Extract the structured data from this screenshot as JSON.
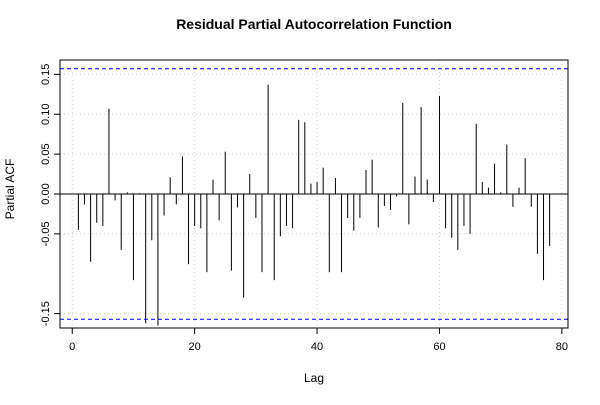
{
  "chart_data": {
    "type": "bar",
    "title": "Residual Partial Autocorrelation Function",
    "xlabel": "Lag",
    "ylabel": "Partial ACF",
    "xlim": [
      -2,
      81
    ],
    "ylim": [
      -0.168,
      0.168
    ],
    "x_ticks": [
      0,
      20,
      40,
      60,
      80
    ],
    "x_tick_labels": [
      "0",
      "20",
      "40",
      "60",
      "80"
    ],
    "y_ticks": [
      -0.15,
      -0.05,
      0.0,
      0.05,
      0.1,
      0.15
    ],
    "y_tick_labels": [
      "-0.15",
      "-0.05",
      "0.00",
      "0.05",
      "0.10",
      "0.15"
    ],
    "grid": true,
    "zero_line": 0,
    "confidence_bound": 0.157,
    "colors": {
      "bars": "#000000",
      "confidence": "#0000ff",
      "grid": "#d3d3d3"
    },
    "series": [
      {
        "x": [
          1,
          2,
          3,
          4,
          5,
          6,
          7,
          8,
          9,
          10,
          11,
          12,
          13,
          14,
          15,
          16,
          17,
          18,
          19,
          20,
          21,
          22,
          23,
          24,
          25,
          26,
          27,
          28,
          29,
          30,
          31,
          32,
          33,
          34,
          35,
          36,
          37,
          38,
          39,
          40,
          41,
          42,
          43,
          44,
          45,
          46,
          47,
          48,
          49,
          50,
          51,
          52,
          53,
          54,
          55,
          56,
          57,
          58,
          59,
          60,
          61,
          62,
          63,
          64,
          65,
          66,
          67,
          68,
          69,
          70,
          71,
          72,
          73,
          74,
          75,
          76,
          77,
          78
        ],
        "values": [
          -0.045,
          -0.013,
          -0.085,
          -0.036,
          -0.04,
          0.107,
          -0.008,
          -0.07,
          0.002,
          -0.108,
          0.001,
          -0.162,
          -0.058,
          -0.165,
          -0.027,
          0.021,
          -0.013,
          0.047,
          -0.088,
          -0.04,
          -0.043,
          -0.098,
          0.018,
          -0.033,
          0.053,
          -0.096,
          -0.017,
          -0.13,
          0.025,
          -0.03,
          -0.098,
          0.137,
          -0.108,
          -0.053,
          -0.04,
          -0.043,
          0.093,
          0.09,
          0.013,
          0.015,
          0.033,
          -0.098,
          0.02,
          -0.098,
          -0.03,
          -0.046,
          -0.03,
          0.03,
          0.043,
          -0.042,
          -0.015,
          -0.02,
          -0.003,
          0.114,
          -0.038,
          0.022,
          0.109,
          0.018,
          -0.01,
          0.123,
          -0.043,
          -0.055,
          -0.07,
          -0.04,
          -0.05,
          0.088,
          0.015,
          0.008,
          0.038,
          0.002,
          0.062,
          -0.016,
          0.008,
          0.045,
          -0.016,
          -0.075,
          -0.108,
          -0.065
        ]
      }
    ]
  }
}
